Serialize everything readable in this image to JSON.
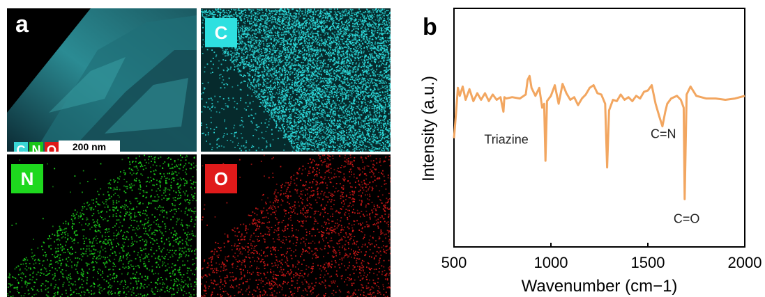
{
  "panel_a": {
    "label": "a",
    "scale_bar": "200 nm",
    "legend": [
      {
        "text": "C",
        "color": "#3ad6d6"
      },
      {
        "text": "N",
        "color": "#19c519"
      },
      {
        "text": "O",
        "color": "#e01818"
      }
    ],
    "maps": [
      {
        "label": "C",
        "color": "#2ee0e0"
      },
      {
        "label": "N",
        "color": "#1ed81e"
      },
      {
        "label": "O",
        "color": "#e01a1a"
      }
    ]
  },
  "panel_b": {
    "label": "b"
  },
  "chart_data": {
    "type": "line",
    "title": "",
    "xlabel": "Wavenumber (cm−1)",
    "ylabel": "Intensity (a.u.)",
    "xlim": [
      500,
      2000
    ],
    "xticks": [
      500,
      1000,
      1500,
      2000
    ],
    "y_ticks_shown": false,
    "series": [
      {
        "color": "#f2a660",
        "x": [
          500,
          510,
          520,
          530,
          545,
          560,
          580,
          600,
          620,
          640,
          660,
          680,
          700,
          720,
          740,
          755,
          760,
          770,
          800,
          840,
          870,
          880,
          890,
          900,
          920,
          940,
          955,
          965,
          972,
          980,
          1000,
          1020,
          1040,
          1060,
          1080,
          1100,
          1120,
          1140,
          1160,
          1180,
          1200,
          1220,
          1240,
          1260,
          1280,
          1290,
          1300,
          1320,
          1340,
          1360,
          1380,
          1400,
          1420,
          1440,
          1460,
          1480,
          1500,
          1520,
          1540,
          1560,
          1575,
          1590,
          1600,
          1620,
          1650,
          1670,
          1685,
          1690,
          1700,
          1720,
          1750,
          1800,
          1850,
          1900,
          1950,
          2000
        ],
        "y": [
          0.22,
          0.4,
          0.6,
          0.54,
          0.61,
          0.51,
          0.59,
          0.5,
          0.56,
          0.51,
          0.56,
          0.5,
          0.55,
          0.51,
          0.53,
          0.42,
          0.53,
          0.52,
          0.53,
          0.52,
          0.55,
          0.66,
          0.69,
          0.6,
          0.54,
          0.6,
          0.45,
          0.48,
          0.05,
          0.5,
          0.54,
          0.62,
          0.48,
          0.63,
          0.56,
          0.51,
          0.53,
          0.47,
          0.52,
          0.55,
          0.6,
          0.62,
          0.56,
          0.55,
          0.48,
          0.0,
          0.43,
          0.51,
          0.5,
          0.55,
          0.51,
          0.53,
          0.5,
          0.54,
          0.52,
          0.57,
          0.58,
          0.62,
          0.48,
          0.38,
          0.31,
          0.42,
          0.48,
          0.52,
          0.54,
          0.51,
          0.45,
          -0.24,
          0.55,
          0.61,
          0.54,
          0.52,
          0.52,
          0.51,
          0.52,
          0.54
        ]
      }
    ],
    "annotations": [
      {
        "text": "Triazine",
        "x": 770
      },
      {
        "text": "C=N",
        "x": 1580
      },
      {
        "text": "C=O",
        "x": 1700
      }
    ]
  }
}
